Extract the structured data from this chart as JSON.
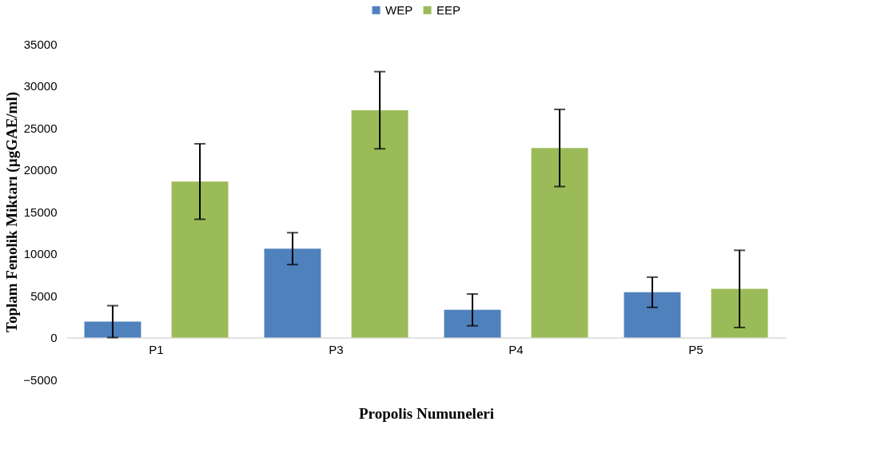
{
  "chart_data": {
    "type": "bar",
    "xlabel": "Propolis Numuneleri",
    "ylabel": "Toplam Fenolik Miktarı  (µgGAE/ml)",
    "categories": [
      "P1",
      "P3",
      "P4",
      "P5"
    ],
    "series": [
      {
        "name": "WEP",
        "color": "#4f81bd",
        "values": [
          1900,
          10600,
          3300,
          5400
        ],
        "errors": [
          1900,
          1900,
          1900,
          1800
        ]
      },
      {
        "name": "EEP",
        "color": "#9bbb59",
        "values": [
          18600,
          27100,
          22600,
          5800
        ],
        "errors": [
          4500,
          4600,
          4600,
          4600
        ]
      }
    ],
    "ylim": [
      -5000,
      35000
    ],
    "yticks": [
      -5000,
      0,
      5000,
      10000,
      15000,
      20000,
      25000,
      30000,
      35000
    ],
    "grid": false,
    "legend": "top"
  }
}
